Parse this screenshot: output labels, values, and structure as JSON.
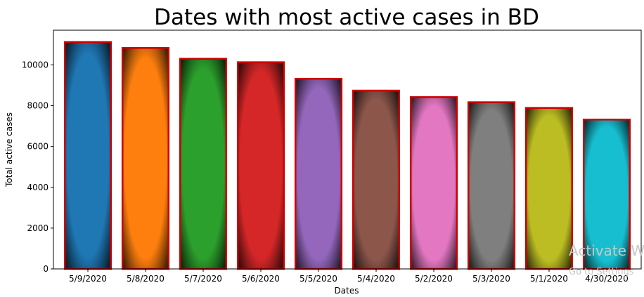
{
  "chart_data": {
    "type": "bar",
    "title": "Dates with most active cases in BD",
    "xlabel": "Dates",
    "ylabel": "Total active cases",
    "categories": [
      "5/9/2020",
      "5/8/2020",
      "5/7/2020",
      "5/6/2020",
      "5/5/2020",
      "5/4/2020",
      "5/2/2020",
      "5/3/2020",
      "5/1/2020",
      "4/30/2020"
    ],
    "values": [
      11120,
      10830,
      10300,
      10130,
      9320,
      8740,
      8420,
      8170,
      7890,
      7320
    ],
    "colors": [
      "#1f77b4",
      "#ff7f0e",
      "#2ca02c",
      "#d62728",
      "#9467bd",
      "#8c564b",
      "#e377c2",
      "#7f7f7f",
      "#bcbd22",
      "#17becf"
    ],
    "edge_color": "#cc0000",
    "ylim": [
      0,
      11700
    ],
    "yticks": [
      0,
      2000,
      4000,
      6000,
      8000,
      10000
    ],
    "grid": false,
    "legend": "none"
  },
  "watermark": {
    "line1": "Activate W",
    "line2": "Go to Settings"
  }
}
